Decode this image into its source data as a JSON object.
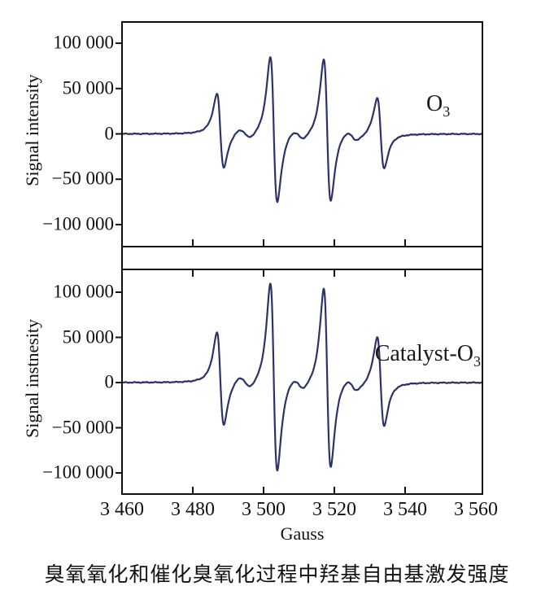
{
  "figure": {
    "caption": "臭氧氧化和催化臭氧化过程中羟基自由基激发强度"
  },
  "chart_data": {
    "type": "line",
    "xlabel": "Gauss",
    "x_range": [
      3460,
      3560
    ],
    "grid": false,
    "x_ticks": [
      {
        "value": 3460,
        "label": "3 460"
      },
      {
        "value": 3480,
        "label": "3 480"
      },
      {
        "value": 3500,
        "label": "3 500"
      },
      {
        "value": 3520,
        "label": "3 520"
      },
      {
        "value": 3540,
        "label": "3 540"
      },
      {
        "value": 3560,
        "label": "3 560"
      }
    ],
    "line_color": "#2c3369",
    "axis_color": "#111111",
    "panels": [
      {
        "id": "ozone",
        "series_label": {
          "main": "O",
          "sub": "3"
        },
        "ylabel": "Signal intensity",
        "y_range": [
          -124000,
          123000
        ],
        "y_ticks": [
          {
            "value": 100000,
            "label": "100 000"
          },
          {
            "value": 50000,
            "label": "50 000"
          },
          {
            "value": 0,
            "label": "0"
          },
          {
            "value": -50000,
            "label": "−50 000"
          },
          {
            "value": -100000,
            "label": "−100 000"
          }
        ],
        "epr_lines": {
          "centers": [
            3487.8,
            3502.9,
            3518.0,
            3533.1
          ],
          "peak_amplitudes": [
            43000,
            85000,
            83000,
            41000
          ],
          "intensity_ratio": "1:2:2:1",
          "linewidth_gauss": 1.7,
          "negative_lobe_scale": 0.9
        },
        "inter_line_wiggles": {
          "centers": [
            3494.7,
            3509.8,
            3524.9
          ],
          "peak_amplitudes": [
            5200,
            5200,
            5200
          ],
          "linewidth_gauss": 2.9,
          "negative_lobe_scale": 1.25
        },
        "baseline_noise_amplitude": 600
      },
      {
        "id": "catalyst-ozone",
        "series_label": {
          "main": "Catalyst-O",
          "sub": "3"
        },
        "ylabel": "Signal instnesity",
        "y_range": [
          -123000,
          125000
        ],
        "y_ticks": [
          {
            "value": 100000,
            "label": "100 000"
          },
          {
            "value": 50000,
            "label": "50 000"
          },
          {
            "value": 0,
            "label": "0"
          },
          {
            "value": -50000,
            "label": "−50 000"
          },
          {
            "value": -100000,
            "label": "−100 000"
          }
        ],
        "epr_lines": {
          "centers": [
            3487.8,
            3502.9,
            3518.0,
            3533.1
          ],
          "peak_amplitudes": [
            54000,
            110000,
            105000,
            52000
          ],
          "intensity_ratio": "1:2:2:1",
          "linewidth_gauss": 1.7,
          "negative_lobe_scale": 0.9
        },
        "inter_line_wiggles": {
          "centers": [
            3494.7,
            3509.8,
            3524.9
          ],
          "peak_amplitudes": [
            6400,
            6400,
            6400
          ],
          "linewidth_gauss": 2.9,
          "negative_lobe_scale": 1.25
        },
        "baseline_noise_amplitude": 600
      }
    ]
  }
}
